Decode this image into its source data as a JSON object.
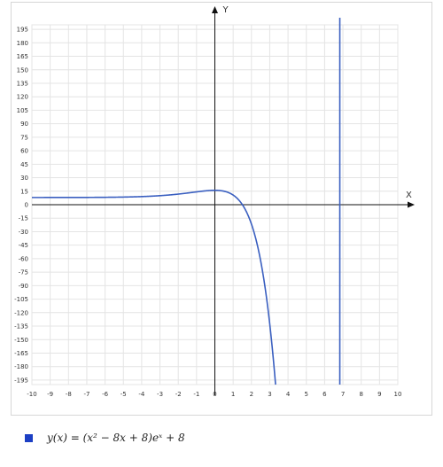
{
  "chart_data": {
    "type": "line",
    "xlabel": "X",
    "ylabel": "Y",
    "xlim": [
      -10,
      10
    ],
    "ylim": [
      -200,
      200
    ],
    "grid": true,
    "x_ticks": [
      -10,
      -9,
      -8,
      -7,
      -6,
      -5,
      -4,
      -3,
      -2,
      -1,
      0,
      1,
      2,
      3,
      4,
      5,
      6,
      7,
      8,
      9,
      10
    ],
    "y_ticks": [
      195,
      180,
      165,
      150,
      135,
      120,
      105,
      90,
      75,
      60,
      45,
      30,
      15,
      0,
      -15,
      -30,
      -45,
      -60,
      -75,
      -90,
      -105,
      -120,
      -135,
      -150,
      -165,
      -180,
      -195
    ],
    "series": [
      {
        "name": "y(x) = (x² − 8x + 8)eˣ + 8",
        "color": "#3a5fc0",
        "function": "(x^2-8*x+8)*exp(x)+8",
        "x_range": [
          -10,
          3.4
        ]
      }
    ],
    "vertical_lines": [
      {
        "x": 6.83,
        "color": "#3a5fc0"
      }
    ],
    "legend": {
      "position": "bottom-left",
      "label": "y(x) = (x² − 8x + 8)eˣ + 8",
      "swatch_color": "#1c3fc4"
    }
  }
}
